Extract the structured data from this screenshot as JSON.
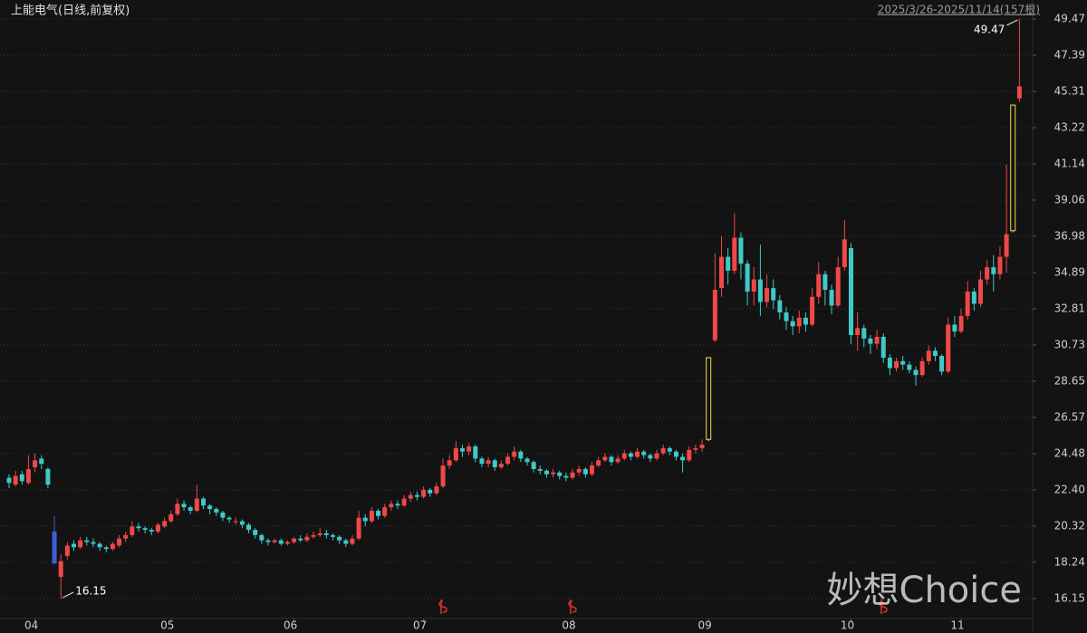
{
  "chart_data": {
    "type": "candlestick",
    "title": "上能电气(日线,前复权)",
    "range_label": "2025/3/26-2025/11/14(157根)",
    "watermark": "妙想Choice",
    "up_color": "#f04848",
    "down_color": "#3fc9c9",
    "limit_up_color": "#f0e050",
    "limit_down_color": "#3a5fd8",
    "ylim": [
      16.15,
      49.47
    ],
    "yticks": [
      49.47,
      47.39,
      45.31,
      43.22,
      41.14,
      39.06,
      36.98,
      34.89,
      32.81,
      30.73,
      28.65,
      26.57,
      24.48,
      {
        "value": 22.4,
        "label": "22.40"
      },
      20.32,
      18.24,
      16.15
    ],
    "grid": true,
    "categories": [
      null,
      null,
      null,
      null,
      "04",
      null,
      null,
      null,
      null,
      null,
      null,
      null,
      null,
      null,
      null,
      null,
      null,
      null,
      null,
      null,
      null,
      null,
      null,
      null,
      null,
      "05",
      null,
      null,
      null,
      null,
      null,
      null,
      null,
      null,
      null,
      null,
      null,
      null,
      null,
      null,
      null,
      null,
      null,
      null,
      "06",
      null,
      null,
      null,
      null,
      null,
      null,
      null,
      null,
      null,
      null,
      null,
      null,
      null,
      null,
      null,
      null,
      null,
      null,
      null,
      "07",
      null,
      null,
      null,
      null,
      null,
      null,
      null,
      null,
      null,
      null,
      null,
      null,
      null,
      null,
      null,
      null,
      null,
      null,
      null,
      null,
      null,
      null,
      "08",
      null,
      null,
      null,
      null,
      null,
      null,
      null,
      null,
      null,
      null,
      null,
      null,
      null,
      null,
      null,
      null,
      null,
      null,
      null,
      null,
      "09",
      null,
      null,
      null,
      null,
      null,
      null,
      null,
      null,
      null,
      null,
      null,
      null,
      null,
      null,
      null,
      null,
      null,
      null,
      null,
      null,
      null,
      "10",
      null,
      null,
      null,
      null,
      null,
      null,
      null,
      null,
      null,
      null,
      null,
      null,
      null,
      null,
      null,
      null,
      "11",
      null,
      null,
      null,
      null,
      null,
      null,
      null,
      null,
      null
    ],
    "open": [
      23.1,
      22.7,
      23.3,
      22.8,
      23.7,
      24.2,
      23.6,
      20.0,
      17.4,
      18.6,
      19.3,
      19.1,
      19.5,
      19.4,
      19.3,
      19.1,
      19.0,
      19.2,
      19.6,
      19.8,
      20.3,
      20.2,
      20.1,
      20.0,
      20.3,
      20.6,
      21.0,
      21.6,
      21.4,
      21.2,
      21.9,
      21.5,
      21.3,
      21.1,
      20.8,
      20.6,
      20.6,
      20.4,
      20.1,
      19.8,
      19.5,
      19.4,
      19.5,
      19.3,
      19.4,
      19.6,
      19.5,
      19.7,
      19.8,
      19.9,
      19.8,
      19.7,
      19.5,
      19.3,
      19.6,
      20.8,
      20.6,
      21.2,
      20.9,
      21.4,
      21.6,
      21.5,
      21.9,
      22.1,
      22.0,
      22.4,
      22.2,
      22.6,
      23.8,
      24.1,
      24.8,
      24.6,
      24.9,
      24.2,
      23.9,
      24.1,
      23.7,
      23.9,
      24.3,
      24.6,
      24.2,
      24.0,
      23.6,
      23.5,
      23.3,
      23.4,
      23.2,
      23.1,
      23.4,
      23.6,
      23.3,
      23.8,
      24.1,
      24.3,
      24.0,
      24.2,
      24.5,
      24.3,
      24.6,
      24.4,
      24.2,
      24.5,
      24.8,
      24.6,
      24.3,
      24.1,
      24.7,
      24.8,
      25.3,
      31.0,
      34.0,
      35.8,
      35.0,
      36.9,
      35.4,
      33.8,
      34.5,
      33.2,
      34.0,
      33.3,
      32.6,
      32.1,
      31.8,
      32.3,
      31.9,
      33.5,
      34.8,
      33.9,
      33.0,
      35.2,
      36.3,
      31.3,
      31.7,
      31.1,
      30.8,
      31.2,
      30.0,
      29.4,
      29.8,
      29.6,
      29.3,
      29.0,
      29.8,
      30.4,
      30.1,
      29.2,
      31.9,
      31.5,
      32.4,
      33.8,
      33.1,
      34.5,
      35.2,
      34.8,
      35.8,
      37.3,
      44.9
    ],
    "high": [
      23.3,
      23.5,
      23.5,
      24.4,
      24.5,
      24.4,
      23.7,
      20.9,
      18.7,
      19.4,
      19.5,
      19.7,
      19.7,
      19.6,
      19.4,
      19.2,
      19.4,
      19.8,
      20.0,
      20.6,
      20.5,
      20.3,
      20.2,
      20.5,
      20.8,
      21.2,
      21.9,
      21.8,
      21.5,
      22.7,
      22.0,
      21.6,
      21.4,
      21.2,
      20.9,
      20.8,
      20.7,
      20.5,
      20.2,
      19.9,
      19.6,
      19.6,
      19.6,
      19.5,
      19.7,
      19.8,
      19.9,
      20.0,
      20.2,
      20.1,
      19.9,
      19.8,
      19.6,
      19.8,
      21.2,
      21.0,
      21.4,
      21.3,
      21.6,
      21.8,
      21.8,
      22.1,
      22.3,
      22.3,
      22.6,
      22.5,
      22.8,
      24.2,
      24.4,
      25.2,
      25.0,
      25.1,
      25.0,
      24.3,
      24.3,
      24.2,
      24.1,
      24.5,
      24.9,
      24.7,
      24.3,
      24.1,
      23.8,
      23.6,
      23.6,
      23.5,
      23.4,
      23.6,
      23.8,
      23.7,
      24.0,
      24.3,
      24.5,
      24.4,
      24.4,
      24.7,
      24.6,
      24.8,
      24.7,
      24.5,
      24.7,
      25.0,
      24.9,
      24.7,
      24.5,
      24.9,
      25.0,
      25.3,
      30.0,
      36.0,
      37.0,
      36.3,
      38.3,
      37.2,
      35.6,
      35.2,
      36.5,
      34.8,
      34.5,
      33.6,
      32.9,
      32.4,
      32.7,
      32.6,
      34.0,
      35.5,
      35.0,
      34.2,
      35.8,
      37.9,
      36.6,
      32.6,
      31.9,
      31.3,
      31.6,
      31.4,
      30.2,
      30.0,
      30.1,
      29.8,
      29.5,
      30.0,
      30.7,
      30.6,
      30.2,
      32.3,
      32.4,
      32.8,
      34.4,
      34.0,
      35.0,
      35.6,
      35.9,
      36.4,
      41.1,
      44.52,
      49.47
    ],
    "low": [
      22.5,
      22.6,
      22.7,
      22.7,
      23.4,
      23.6,
      22.5,
      18.16,
      16.15,
      18.4,
      18.9,
      19.0,
      19.2,
      19.1,
      18.9,
      18.8,
      18.9,
      19.1,
      19.4,
      19.7,
      20.0,
      19.9,
      19.8,
      19.9,
      20.2,
      20.5,
      20.9,
      21.2,
      21.0,
      21.1,
      21.3,
      21.0,
      20.9,
      20.6,
      20.5,
      20.4,
      20.2,
      19.9,
      19.6,
      19.3,
      19.2,
      19.3,
      19.2,
      19.2,
      19.3,
      19.4,
      19.4,
      19.6,
      19.7,
      19.6,
      19.5,
      19.3,
      19.1,
      19.2,
      19.5,
      20.3,
      20.5,
      20.7,
      20.8,
      21.2,
      21.3,
      21.4,
      21.7,
      21.8,
      21.9,
      22.0,
      22.1,
      22.5,
      23.6,
      24.0,
      24.3,
      24.4,
      24.0,
      23.7,
      23.7,
      23.5,
      23.6,
      23.8,
      24.1,
      24.0,
      23.8,
      23.4,
      23.3,
      23.1,
      23.1,
      23.0,
      22.9,
      23.0,
      23.2,
      23.1,
      23.2,
      23.7,
      24.0,
      23.8,
      23.9,
      24.1,
      24.1,
      24.2,
      24.2,
      24.0,
      24.1,
      24.4,
      24.4,
      24.1,
      23.4,
      24.0,
      24.5,
      24.6,
      25.2,
      30.9,
      33.5,
      34.2,
      34.8,
      34.5,
      33.0,
      33.0,
      32.4,
      32.9,
      32.8,
      32.2,
      31.6,
      31.3,
      31.4,
      31.5,
      31.8,
      33.1,
      33.0,
      32.5,
      32.9,
      35.0,
      30.8,
      30.4,
      30.6,
      30.2,
      30.5,
      29.7,
      29.0,
      29.2,
      29.3,
      29.1,
      28.4,
      28.9,
      29.6,
      29.8,
      29.0,
      29.1,
      31.2,
      31.4,
      32.2,
      32.7,
      32.9,
      34.2,
      33.8,
      34.5,
      34.9,
      37.2,
      44.7
    ],
    "close": [
      22.8,
      23.2,
      22.9,
      23.6,
      24.1,
      23.9,
      22.7,
      18.16,
      18.3,
      19.2,
      19.1,
      19.5,
      19.4,
      19.3,
      19.1,
      19.0,
      19.3,
      19.6,
      19.8,
      20.3,
      20.2,
      20.1,
      20.0,
      20.4,
      20.6,
      21.0,
      21.6,
      21.4,
      21.2,
      21.9,
      21.5,
      21.3,
      21.1,
      20.8,
      20.7,
      20.6,
      20.4,
      20.1,
      19.8,
      19.5,
      19.4,
      19.5,
      19.3,
      19.4,
      19.6,
      19.5,
      19.7,
      19.8,
      19.9,
      19.8,
      19.7,
      19.5,
      19.3,
      19.6,
      20.8,
      20.6,
      21.2,
      20.9,
      21.4,
      21.6,
      21.5,
      21.9,
      22.1,
      22.0,
      22.4,
      22.2,
      22.6,
      23.8,
      24.1,
      24.8,
      24.6,
      24.9,
      24.2,
      23.9,
      24.1,
      23.7,
      23.9,
      24.3,
      24.6,
      24.2,
      24.0,
      23.6,
      23.5,
      23.3,
      23.4,
      23.2,
      23.1,
      23.4,
      23.6,
      23.3,
      23.8,
      24.1,
      24.3,
      24.0,
      24.2,
      24.5,
      24.3,
      24.6,
      24.4,
      24.2,
      24.5,
      24.8,
      24.6,
      24.3,
      24.1,
      24.7,
      24.8,
      25.0,
      30.0,
      33.9,
      35.8,
      35.0,
      36.9,
      35.4,
      33.8,
      34.5,
      33.2,
      34.0,
      33.3,
      32.6,
      32.1,
      31.8,
      32.3,
      31.9,
      33.5,
      34.8,
      33.9,
      33.0,
      35.2,
      36.8,
      31.3,
      31.7,
      31.1,
      30.8,
      31.2,
      30.0,
      29.4,
      29.8,
      29.6,
      29.3,
      29.0,
      29.8,
      30.4,
      30.1,
      29.2,
      31.9,
      31.5,
      32.4,
      33.8,
      33.1,
      34.5,
      35.2,
      34.8,
      35.8,
      37.1,
      44.52,
      45.6
    ]
  }
}
